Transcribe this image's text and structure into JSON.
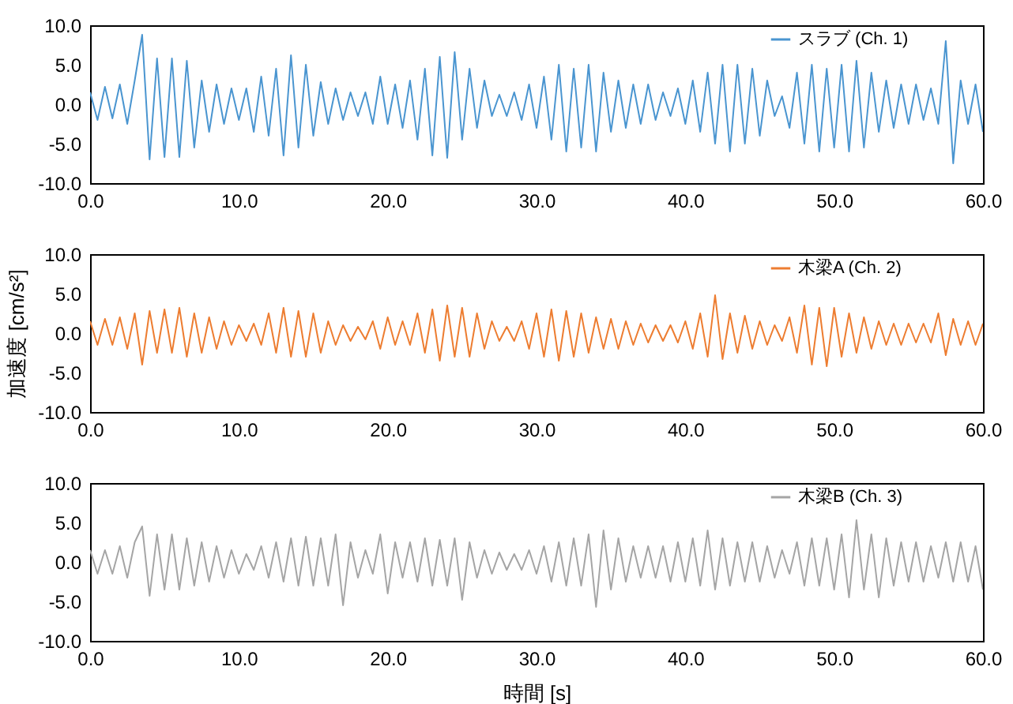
{
  "chart_data": [
    {
      "type": "line",
      "legend": "top right",
      "x": [
        0,
        0.5,
        1,
        1.5,
        2,
        2.5,
        3,
        3.5,
        4,
        4.5,
        5,
        5.5,
        6,
        6.5,
        7,
        7.5,
        8,
        8.5,
        9,
        9.5,
        10,
        10.5,
        11,
        11.5,
        12,
        12.5,
        13,
        13.5,
        14,
        14.5,
        15,
        15.5,
        16,
        16.5,
        17,
        17.5,
        18,
        18.5,
        19,
        19.5,
        20,
        20.5,
        21,
        21.5,
        22,
        22.5,
        23,
        23.5,
        24,
        24.5,
        25,
        25.5,
        26,
        26.5,
        27,
        27.5,
        28,
        28.5,
        29,
        29.5,
        30,
        30.5,
        31,
        31.5,
        32,
        32.5,
        33,
        33.5,
        34,
        34.5,
        35,
        35.5,
        36,
        36.5,
        37,
        37.5,
        38,
        38.5,
        39,
        39.5,
        40,
        40.5,
        41,
        41.5,
        42,
        42.5,
        43,
        43.5,
        44,
        44.5,
        45,
        45.5,
        46,
        46.5,
        47,
        47.5,
        48,
        48.5,
        49,
        49.5,
        50,
        50.5,
        51,
        51.5,
        52,
        52.5,
        53,
        53.5,
        54,
        54.5,
        55,
        55.5,
        56,
        56.5,
        57,
        57.5,
        58,
        58.5,
        59,
        59.5,
        60
      ],
      "xlim": [
        0,
        60
      ],
      "xticks": [
        {
          "value": 0,
          "label": "0.0"
        },
        {
          "value": 10,
          "label": "10.0"
        },
        {
          "value": 20,
          "label": "20.0"
        },
        {
          "value": 30,
          "label": "30.0"
        },
        {
          "value": 40,
          "label": "40.0"
        },
        {
          "value": 50,
          "label": "50.0"
        },
        {
          "value": 60,
          "label": "60.0"
        }
      ],
      "ylim": [
        -10,
        10
      ],
      "yticks": [
        {
          "value": -10,
          "label": "-10.0"
        },
        {
          "value": -5,
          "label": "-5.0"
        },
        {
          "value": 0,
          "label": "0.0"
        },
        {
          "value": 5,
          "label": "5.0"
        },
        {
          "value": 10,
          "label": "10.0"
        }
      ],
      "series": [
        {
          "name": "スラブ (Ch. 1)",
          "color": "#4a95d0",
          "values": [
            1.5,
            -2,
            2.2,
            -1.8,
            2.5,
            -2.5,
            3,
            8.8,
            -7,
            5.8,
            -6.7,
            5.8,
            -6.7,
            5.5,
            -5.5,
            3,
            -3.5,
            2.5,
            -2.5,
            2,
            -2,
            2,
            -3.5,
            3.5,
            -4,
            4.5,
            -6.5,
            6.2,
            -5.5,
            5,
            -4,
            2.8,
            -2.5,
            2,
            -2,
            1.5,
            -1.5,
            1.5,
            -2.5,
            3.5,
            -2.5,
            2.5,
            -3,
            3,
            -4.5,
            4.5,
            -6.5,
            6,
            -6.8,
            6.6,
            -4.5,
            4.5,
            -3,
            3,
            -1.5,
            1.2,
            -1.5,
            1.5,
            -2,
            2.5,
            -3,
            3.5,
            -4.5,
            5,
            -6,
            4.5,
            -5.5,
            5,
            -6,
            4,
            -3.5,
            3,
            -3,
            2.5,
            -2.5,
            2.5,
            -2,
            1.5,
            -1.5,
            2,
            -2.5,
            3,
            -3.5,
            4,
            -5,
            5,
            -6,
            5,
            -5,
            4.5,
            -4,
            3,
            -1.5,
            1,
            -3,
            4,
            -5,
            5,
            -6,
            4.5,
            -5.5,
            5,
            -6,
            5.5,
            -5.5,
            4,
            -3.5,
            3,
            -3,
            2.5,
            -2.5,
            2.5,
            -2,
            2,
            -2.5,
            8,
            -7.5,
            3,
            -2.5,
            2.5,
            -3.5
          ]
        }
      ]
    },
    {
      "type": "line",
      "legend": "top right",
      "ylabel": "加速度 [cm/s²]",
      "x": [
        0,
        0.5,
        1,
        1.5,
        2,
        2.5,
        3,
        3.5,
        4,
        4.5,
        5,
        5.5,
        6,
        6.5,
        7,
        7.5,
        8,
        8.5,
        9,
        9.5,
        10,
        10.5,
        11,
        11.5,
        12,
        12.5,
        13,
        13.5,
        14,
        14.5,
        15,
        15.5,
        16,
        16.5,
        17,
        17.5,
        18,
        18.5,
        19,
        19.5,
        20,
        20.5,
        21,
        21.5,
        22,
        22.5,
        23,
        23.5,
        24,
        24.5,
        25,
        25.5,
        26,
        26.5,
        27,
        27.5,
        28,
        28.5,
        29,
        29.5,
        30,
        30.5,
        31,
        31.5,
        32,
        32.5,
        33,
        33.5,
        34,
        34.5,
        35,
        35.5,
        36,
        36.5,
        37,
        37.5,
        38,
        38.5,
        39,
        39.5,
        40,
        40.5,
        41,
        41.5,
        42,
        42.5,
        43,
        43.5,
        44,
        44.5,
        45,
        45.5,
        46,
        46.5,
        47,
        47.5,
        48,
        48.5,
        49,
        49.5,
        50,
        50.5,
        51,
        51.5,
        52,
        52.5,
        53,
        53.5,
        54,
        54.5,
        55,
        55.5,
        56,
        56.5,
        57,
        57.5,
        58,
        58.5,
        59,
        59.5,
        60
      ],
      "xlim": [
        0,
        60
      ],
      "xticks": [
        {
          "value": 0,
          "label": "0.0"
        },
        {
          "value": 10,
          "label": "10.0"
        },
        {
          "value": 20,
          "label": "20.0"
        },
        {
          "value": 30,
          "label": "30.0"
        },
        {
          "value": 40,
          "label": "40.0"
        },
        {
          "value": 50,
          "label": "50.0"
        },
        {
          "value": 60,
          "label": "60.0"
        }
      ],
      "ylim": [
        -10,
        10
      ],
      "yticks": [
        {
          "value": -10,
          "label": "-10.0"
        },
        {
          "value": -5,
          "label": "-5.0"
        },
        {
          "value": 0,
          "label": "0.0"
        },
        {
          "value": 5,
          "label": "5.0"
        },
        {
          "value": 10,
          "label": "10.0"
        }
      ],
      "series": [
        {
          "name": "木梁A (Ch. 2)",
          "color": "#ed7d31",
          "values": [
            1.5,
            -1.5,
            1.8,
            -1.5,
            2,
            -2,
            2.5,
            -4,
            2.8,
            -2.5,
            3,
            -2.5,
            3.2,
            -3,
            2.5,
            -2.5,
            2,
            -2,
            1.5,
            -1.5,
            1,
            -1,
            1.2,
            -1.5,
            2.5,
            -2.5,
            3.2,
            -3,
            2.8,
            -3,
            2.5,
            -2.5,
            1.5,
            -1.5,
            1,
            -1,
            0.8,
            -0.8,
            1.5,
            -2,
            2,
            -1.5,
            1.5,
            -1.5,
            2.5,
            -2.5,
            3,
            -3.5,
            3.5,
            -3,
            3.2,
            -3,
            2.5,
            -2,
            1.5,
            -1,
            0.8,
            -1,
            1.5,
            -2,
            2.5,
            -3,
            3,
            -3.5,
            2.8,
            -3,
            2.5,
            -2.5,
            2,
            -2,
            1.8,
            -2,
            1.5,
            -1.5,
            1.2,
            -1.2,
            1,
            -1,
            1,
            -1.2,
            1.5,
            -2,
            2.5,
            -3,
            4.8,
            -3.3,
            2.5,
            -2.5,
            2.2,
            -2,
            1.5,
            -1.5,
            1,
            -1,
            2,
            -2.5,
            3.5,
            -4,
            3.2,
            -4.2,
            3.2,
            -3,
            2.5,
            -2.5,
            2,
            -2,
            1.5,
            -1.5,
            1.2,
            -1.5,
            1.2,
            -1.2,
            1.2,
            -1.2,
            2.5,
            -2.8,
            1.8,
            -1.5,
            1.5,
            -1.5,
            1.2
          ]
        }
      ]
    },
    {
      "type": "line",
      "legend": "top right",
      "xlabel": "時間 [s]",
      "x": [
        0,
        0.5,
        1,
        1.5,
        2,
        2.5,
        3,
        3.5,
        4,
        4.5,
        5,
        5.5,
        6,
        6.5,
        7,
        7.5,
        8,
        8.5,
        9,
        9.5,
        10,
        10.5,
        11,
        11.5,
        12,
        12.5,
        13,
        13.5,
        14,
        14.5,
        15,
        15.5,
        16,
        16.5,
        17,
        17.5,
        18,
        18.5,
        19,
        19.5,
        20,
        20.5,
        21,
        21.5,
        22,
        22.5,
        23,
        23.5,
        24,
        24.5,
        25,
        25.5,
        26,
        26.5,
        27,
        27.5,
        28,
        28.5,
        29,
        29.5,
        30,
        30.5,
        31,
        31.5,
        32,
        32.5,
        33,
        33.5,
        34,
        34.5,
        35,
        35.5,
        36,
        36.5,
        37,
        37.5,
        38,
        38.5,
        39,
        39.5,
        40,
        40.5,
        41,
        41.5,
        42,
        42.5,
        43,
        43.5,
        44,
        44.5,
        45,
        45.5,
        46,
        46.5,
        47,
        47.5,
        48,
        48.5,
        49,
        49.5,
        50,
        50.5,
        51,
        51.5,
        52,
        52.5,
        53,
        53.5,
        54,
        54.5,
        55,
        55.5,
        56,
        56.5,
        57,
        57.5,
        58,
        58.5,
        59,
        59.5,
        60
      ],
      "xlim": [
        0,
        60
      ],
      "xticks": [
        {
          "value": 0,
          "label": "0.0"
        },
        {
          "value": 10,
          "label": "10.0"
        },
        {
          "value": 20,
          "label": "20.0"
        },
        {
          "value": 30,
          "label": "30.0"
        },
        {
          "value": 40,
          "label": "40.0"
        },
        {
          "value": 50,
          "label": "50.0"
        },
        {
          "value": 60,
          "label": "60.0"
        }
      ],
      "ylim": [
        -10,
        10
      ],
      "yticks": [
        {
          "value": -10,
          "label": "-10.0"
        },
        {
          "value": -5,
          "label": "-5.0"
        },
        {
          "value": 0,
          "label": "0.0"
        },
        {
          "value": 5,
          "label": "5.0"
        },
        {
          "value": 10,
          "label": "10.0"
        }
      ],
      "series": [
        {
          "name": "木梁B (Ch. 3)",
          "color": "#a5a5a5",
          "values": [
            1.5,
            -1.5,
            1.5,
            -1.5,
            2,
            -2,
            2.5,
            4.5,
            -4.3,
            3.5,
            -3.5,
            3.5,
            -3.5,
            3,
            -3,
            2.5,
            -2.5,
            2,
            -2,
            1.5,
            -1.5,
            1,
            -1,
            2,
            -2,
            2.5,
            -2.5,
            3,
            -3,
            3.2,
            -3,
            3,
            -3,
            3.5,
            -5.5,
            2.5,
            -2,
            1.5,
            -1.5,
            3.5,
            -4,
            2.5,
            -2,
            2.5,
            -2.5,
            3,
            -3,
            2.8,
            -3,
            3,
            -4.8,
            2.5,
            -2,
            1.5,
            -1.5,
            1.2,
            -1,
            1,
            -1,
            1.5,
            -1.5,
            2,
            -2.5,
            2.5,
            -3,
            3,
            -3,
            3.5,
            -5.7,
            4,
            -3.5,
            3,
            -2.5,
            2,
            -2,
            2,
            -2,
            2,
            -2.5,
            2.5,
            -2.5,
            3,
            -3,
            4,
            -3.5,
            3,
            -3,
            2.5,
            -2.5,
            2.5,
            -2.5,
            2,
            -2,
            1.5,
            -1.5,
            2.5,
            -3,
            3,
            -3,
            3,
            -3.5,
            3.5,
            -4.5,
            5.3,
            -3.5,
            3.5,
            -4.5,
            3,
            -3,
            2.5,
            -2.5,
            2.5,
            -2.5,
            2,
            -2,
            2.5,
            -2.5,
            2.5,
            -2.5,
            2,
            -3.5
          ]
        }
      ]
    }
  ]
}
